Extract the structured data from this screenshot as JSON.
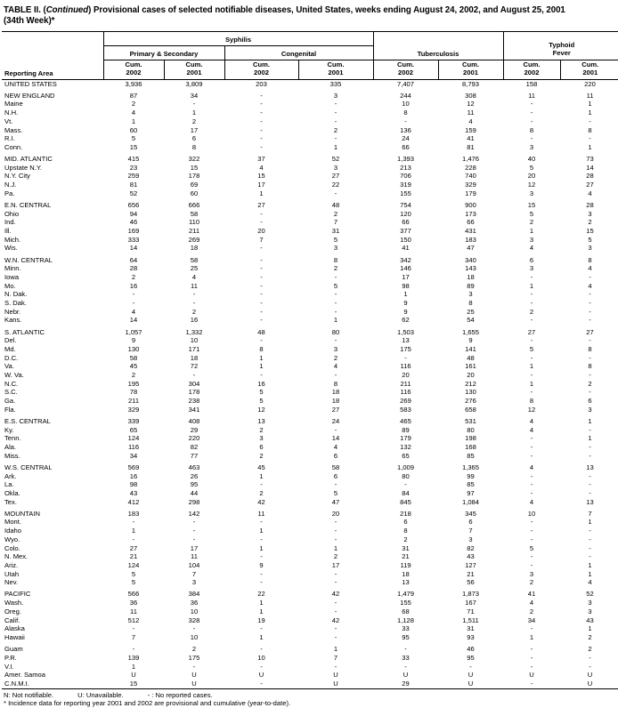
{
  "title": {
    "prefix": "TABLE II. (",
    "continued": "Continued",
    "line1_rest": ") Provisional cases of selected notifiable diseases, United States, weeks ending August 24, 2002, and August 25, 2001",
    "line2": "(34th Week)*"
  },
  "table": {
    "reporting_area_label": "Reporting Area",
    "group_syphilis": "Syphilis",
    "group_primary_secondary": "Primary & Secondary",
    "group_congenital": "Congenital",
    "group_tuberculosis": "Tuberculosis",
    "group_typhoid_line1": "Typhoid",
    "group_typhoid_line2": "Fever",
    "cum_label": "Cum.",
    "year_2002": "2002",
    "year_2001": "2001",
    "sections": [
      {
        "rows": [
          {
            "area": "UNITED STATES",
            "values": [
              "3,936",
              "3,809",
              "203",
              "335",
              "7,407",
              "8,793",
              "158",
              "220"
            ]
          }
        ]
      },
      {
        "rows": [
          {
            "area": "NEW ENGLAND",
            "values": [
              "87",
              "34",
              "-",
              "3",
              "244",
              "308",
              "11",
              "11"
            ]
          },
          {
            "area": "Maine",
            "values": [
              "2",
              "-",
              "-",
              "-",
              "10",
              "12",
              "-",
              "1"
            ]
          },
          {
            "area": "N.H.",
            "values": [
              "4",
              "1",
              "-",
              "-",
              "8",
              "11",
              "-",
              "1"
            ]
          },
          {
            "area": "Vt.",
            "values": [
              "1",
              "2",
              "-",
              "-",
              "-",
              "4",
              "-",
              "-"
            ]
          },
          {
            "area": "Mass.",
            "values": [
              "60",
              "17",
              "-",
              "2",
              "136",
              "159",
              "8",
              "8"
            ]
          },
          {
            "area": "R.I.",
            "values": [
              "5",
              "6",
              "-",
              "-",
              "24",
              "41",
              "-",
              "-"
            ]
          },
          {
            "area": "Conn.",
            "values": [
              "15",
              "8",
              "-",
              "1",
              "66",
              "81",
              "3",
              "1"
            ]
          }
        ]
      },
      {
        "rows": [
          {
            "area": "MID. ATLANTIC",
            "values": [
              "415",
              "322",
              "37",
              "52",
              "1,393",
              "1,476",
              "40",
              "73"
            ]
          },
          {
            "area": "Upstate N.Y.",
            "values": [
              "23",
              "15",
              "4",
              "3",
              "213",
              "228",
              "5",
              "14"
            ]
          },
          {
            "area": "N.Y. City",
            "values": [
              "259",
              "178",
              "15",
              "27",
              "706",
              "740",
              "20",
              "28"
            ]
          },
          {
            "area": "N.J.",
            "values": [
              "81",
              "69",
              "17",
              "22",
              "319",
              "329",
              "12",
              "27"
            ]
          },
          {
            "area": "Pa.",
            "values": [
              "52",
              "60",
              "1",
              "-",
              "155",
              "179",
              "3",
              "4"
            ]
          }
        ]
      },
      {
        "rows": [
          {
            "area": "E.N. CENTRAL",
            "values": [
              "656",
              "666",
              "27",
              "48",
              "754",
              "900",
              "15",
              "28"
            ]
          },
          {
            "area": "Ohio",
            "values": [
              "94",
              "58",
              "-",
              "2",
              "120",
              "173",
              "5",
              "3"
            ]
          },
          {
            "area": "Ind.",
            "values": [
              "46",
              "110",
              "-",
              "7",
              "66",
              "66",
              "2",
              "2"
            ]
          },
          {
            "area": "Ill.",
            "values": [
              "169",
              "211",
              "20",
              "31",
              "377",
              "431",
              "1",
              "15"
            ]
          },
          {
            "area": "Mich.",
            "values": [
              "333",
              "269",
              "7",
              "5",
              "150",
              "183",
              "3",
              "5"
            ]
          },
          {
            "area": "Wis.",
            "values": [
              "14",
              "18",
              "-",
              "3",
              "41",
              "47",
              "4",
              "3"
            ]
          }
        ]
      },
      {
        "rows": [
          {
            "area": "W.N. CENTRAL",
            "values": [
              "64",
              "58",
              "-",
              "8",
              "342",
              "340",
              "6",
              "8"
            ]
          },
          {
            "area": "Minn.",
            "values": [
              "28",
              "25",
              "-",
              "2",
              "146",
              "143",
              "3",
              "4"
            ]
          },
          {
            "area": "Iowa",
            "values": [
              "2",
              "4",
              "-",
              "-",
              "17",
              "18",
              "-",
              "-"
            ]
          },
          {
            "area": "Mo.",
            "values": [
              "16",
              "11",
              "-",
              "5",
              "98",
              "89",
              "1",
              "4"
            ]
          },
          {
            "area": "N. Dak.",
            "values": [
              "-",
              "-",
              "-",
              "-",
              "1",
              "3",
              "-",
              "-"
            ]
          },
          {
            "area": "S. Dak.",
            "values": [
              "-",
              "-",
              "-",
              "-",
              "9",
              "8",
              "-",
              "-"
            ]
          },
          {
            "area": "Nebr.",
            "values": [
              "4",
              "2",
              "-",
              "-",
              "9",
              "25",
              "2",
              "-"
            ]
          },
          {
            "area": "Kans.",
            "values": [
              "14",
              "16",
              "-",
              "1",
              "62",
              "54",
              "-",
              "-"
            ]
          }
        ]
      },
      {
        "rows": [
          {
            "area": "S. ATLANTIC",
            "values": [
              "1,057",
              "1,332",
              "48",
              "80",
              "1,503",
              "1,655",
              "27",
              "27"
            ]
          },
          {
            "area": "Del.",
            "values": [
              "9",
              "10",
              "-",
              "-",
              "13",
              "9",
              "-",
              "-"
            ]
          },
          {
            "area": "Md.",
            "values": [
              "130",
              "171",
              "8",
              "3",
              "175",
              "141",
              "5",
              "8"
            ]
          },
          {
            "area": "D.C.",
            "values": [
              "58",
              "18",
              "1",
              "2",
              "-",
              "48",
              "-",
              "-"
            ]
          },
          {
            "area": "Va.",
            "values": [
              "45",
              "72",
              "1",
              "4",
              "116",
              "161",
              "1",
              "8"
            ]
          },
          {
            "area": "W. Va.",
            "values": [
              "2",
              "-",
              "-",
              "-",
              "20",
              "20",
              "-",
              "-"
            ]
          },
          {
            "area": "N.C.",
            "values": [
              "195",
              "304",
              "16",
              "8",
              "211",
              "212",
              "1",
              "2"
            ]
          },
          {
            "area": "S.C.",
            "values": [
              "78",
              "178",
              "5",
              "18",
              "116",
              "130",
              "-",
              "-"
            ]
          },
          {
            "area": "Ga.",
            "values": [
              "211",
              "238",
              "5",
              "18",
              "269",
              "276",
              "8",
              "6"
            ]
          },
          {
            "area": "Fla.",
            "values": [
              "329",
              "341",
              "12",
              "27",
              "583",
              "658",
              "12",
              "3"
            ]
          }
        ]
      },
      {
        "rows": [
          {
            "area": "E.S. CENTRAL",
            "values": [
              "339",
              "408",
              "13",
              "24",
              "465",
              "531",
              "4",
              "1"
            ]
          },
          {
            "area": "Ky.",
            "values": [
              "65",
              "29",
              "2",
              "-",
              "89",
              "80",
              "4",
              "-"
            ]
          },
          {
            "area": "Tenn.",
            "values": [
              "124",
              "220",
              "3",
              "14",
              "179",
              "198",
              "-",
              "1"
            ]
          },
          {
            "area": "Ala.",
            "values": [
              "116",
              "82",
              "6",
              "4",
              "132",
              "168",
              "-",
              "-"
            ]
          },
          {
            "area": "Miss.",
            "values": [
              "34",
              "77",
              "2",
              "6",
              "65",
              "85",
              "-",
              "-"
            ]
          }
        ]
      },
      {
        "rows": [
          {
            "area": "W.S. CENTRAL",
            "values": [
              "569",
              "463",
              "45",
              "58",
              "1,009",
              "1,365",
              "4",
              "13"
            ]
          },
          {
            "area": "Ark.",
            "values": [
              "16",
              "26",
              "1",
              "6",
              "80",
              "99",
              "-",
              "-"
            ]
          },
          {
            "area": "La.",
            "values": [
              "98",
              "95",
              "-",
              "-",
              "-",
              "85",
              "-",
              "-"
            ]
          },
          {
            "area": "Okla.",
            "values": [
              "43",
              "44",
              "2",
              "5",
              "84",
              "97",
              "-",
              "-"
            ]
          },
          {
            "area": "Tex.",
            "values": [
              "412",
              "298",
              "42",
              "47",
              "845",
              "1,084",
              "4",
              "13"
            ]
          }
        ]
      },
      {
        "rows": [
          {
            "area": "MOUNTAIN",
            "values": [
              "183",
              "142",
              "11",
              "20",
              "218",
              "345",
              "10",
              "7"
            ]
          },
          {
            "area": "Mont.",
            "values": [
              "-",
              "-",
              "-",
              "-",
              "6",
              "6",
              "-",
              "1"
            ]
          },
          {
            "area": "Idaho",
            "values": [
              "1",
              "-",
              "1",
              "-",
              "8",
              "7",
              "-",
              "-"
            ]
          },
          {
            "area": "Wyo.",
            "values": [
              "-",
              "-",
              "-",
              "-",
              "2",
              "3",
              "-",
              "-"
            ]
          },
          {
            "area": "Colo.",
            "values": [
              "27",
              "17",
              "1",
              "1",
              "31",
              "82",
              "5",
              "-"
            ]
          },
          {
            "area": "N. Mex.",
            "values": [
              "21",
              "11",
              "-",
              "2",
              "21",
              "43",
              "-",
              "-"
            ]
          },
          {
            "area": "Ariz.",
            "values": [
              "124",
              "104",
              "9",
              "17",
              "119",
              "127",
              "-",
              "1"
            ]
          },
          {
            "area": "Utah",
            "values": [
              "5",
              "7",
              "-",
              "-",
              "18",
              "21",
              "3",
              "1"
            ]
          },
          {
            "area": "Nev.",
            "values": [
              "5",
              "3",
              "-",
              "-",
              "13",
              "56",
              "2",
              "4"
            ]
          }
        ]
      },
      {
        "rows": [
          {
            "area": "PACIFIC",
            "values": [
              "566",
              "384",
              "22",
              "42",
              "1,479",
              "1,873",
              "41",
              "52"
            ]
          },
          {
            "area": "Wash.",
            "values": [
              "36",
              "36",
              "1",
              "-",
              "155",
              "167",
              "4",
              "3"
            ]
          },
          {
            "area": "Oreg.",
            "values": [
              "11",
              "10",
              "1",
              "-",
              "68",
              "71",
              "2",
              "3"
            ]
          },
          {
            "area": "Calif.",
            "values": [
              "512",
              "328",
              "19",
              "42",
              "1,128",
              "1,511",
              "34",
              "43"
            ]
          },
          {
            "area": "Alaska",
            "values": [
              "-",
              "-",
              "-",
              "-",
              "33",
              "31",
              "-",
              "1"
            ]
          },
          {
            "area": "Hawaii",
            "values": [
              "7",
              "10",
              "1",
              "-",
              "95",
              "93",
              "1",
              "2"
            ]
          }
        ]
      },
      {
        "rows": [
          {
            "area": "Guam",
            "values": [
              "-",
              "2",
              "-",
              "1",
              "-",
              "46",
              "-",
              "2"
            ]
          },
          {
            "area": "P.R.",
            "values": [
              "139",
              "175",
              "10",
              "7",
              "33",
              "95",
              "-",
              "-"
            ]
          },
          {
            "area": "V.I.",
            "values": [
              "1",
              "-",
              "-",
              "-",
              "-",
              "-",
              "-",
              "-"
            ]
          },
          {
            "area": "Amer. Samoa",
            "values": [
              "U",
              "U",
              "U",
              "U",
              "U",
              "U",
              "U",
              "U"
            ]
          },
          {
            "area": "C.N.M.I.",
            "values": [
              "15",
              "U",
              "-",
              "U",
              "29",
              "U",
              "-",
              "U"
            ]
          }
        ]
      }
    ]
  },
  "footnotes": {
    "n": "N: Not notifiable.",
    "u": "U: Unavailable.",
    "dash": "- : No reported cases.",
    "asterisk": "* Incidence data for reporting year 2001 and 2002 are provisional and cumulative (year-to-date)."
  }
}
